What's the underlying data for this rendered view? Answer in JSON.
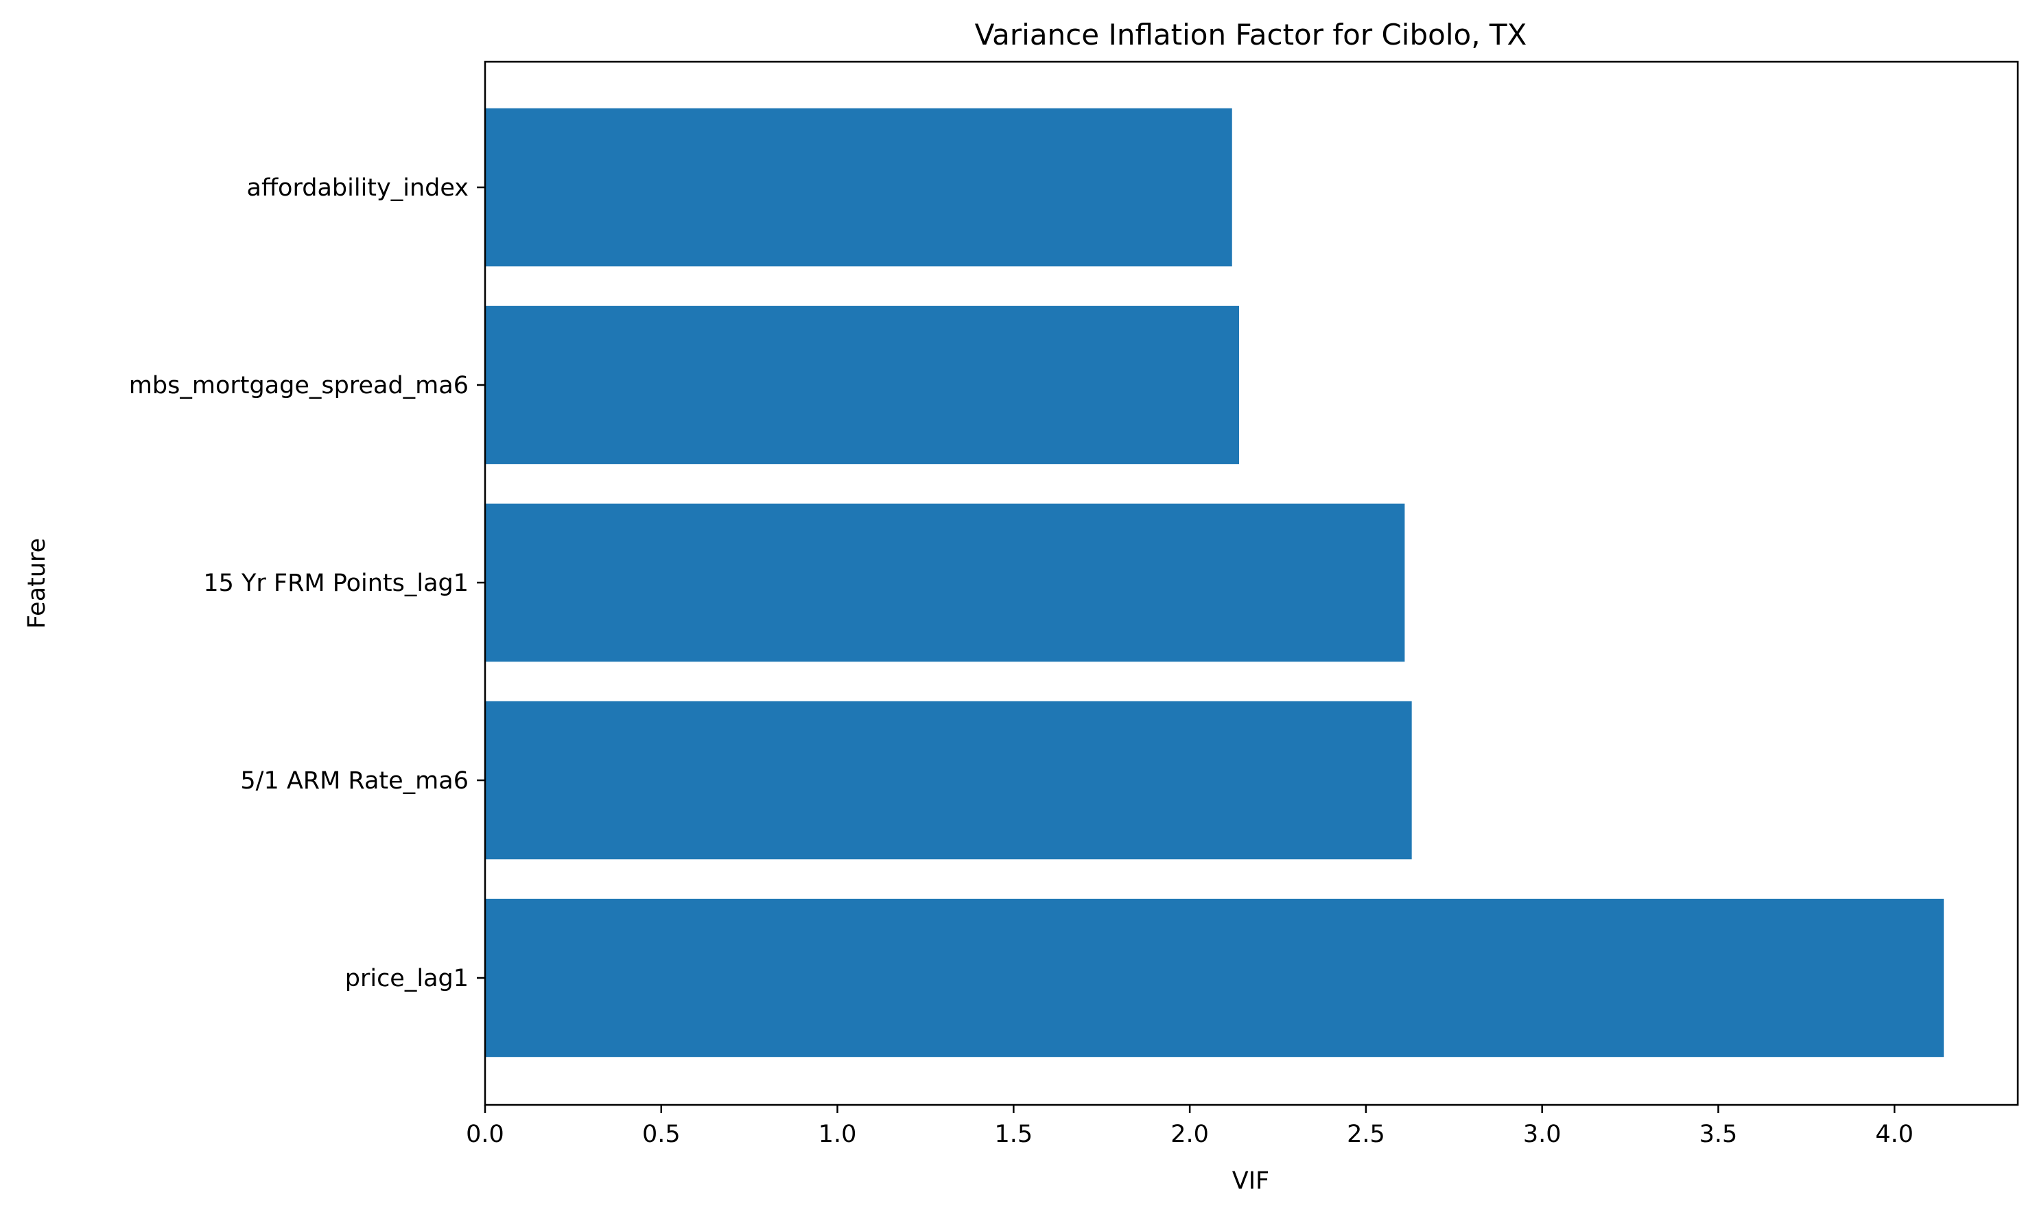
{
  "chart_data": {
    "type": "bar",
    "orientation": "horizontal",
    "title": "Variance Inflation Factor for Cibolo, TX",
    "xlabel": "VIF",
    "ylabel": "Feature",
    "categories": [
      "price_lag1",
      "5/1 ARM Rate_ma6",
      "15 Yr FRM Points_lag1",
      "mbs_mortgage_spread_ma6",
      "affordability_index"
    ],
    "values": [
      4.14,
      2.63,
      2.61,
      2.14,
      2.12
    ],
    "xlim": [
      0,
      4.35
    ],
    "xticks": [
      0.0,
      0.5,
      1.0,
      1.5,
      2.0,
      2.5,
      3.0,
      3.5,
      4.0
    ],
    "xtick_labels": [
      "0.0",
      "0.5",
      "1.0",
      "1.5",
      "2.0",
      "2.5",
      "3.0",
      "3.5",
      "4.0"
    ],
    "bar_color": "#1f77b4",
    "grid": false,
    "legend": "none"
  }
}
